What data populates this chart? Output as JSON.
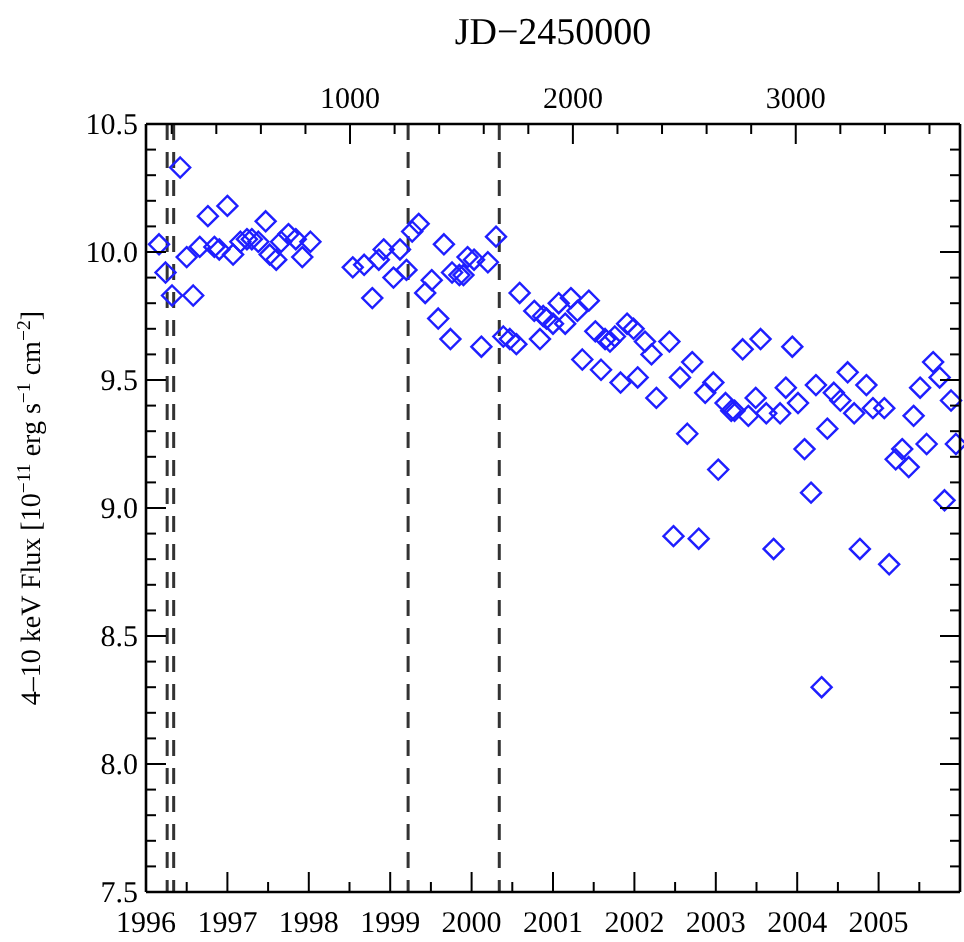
{
  "chart_data": {
    "type": "scatter",
    "x2label": "JD−2450000",
    "ylabel": "4–10 keV Flux [10$^{−11}$ erg s$^{−1}$ cm$^{−2}$]",
    "marker": "diamond",
    "xlim": [
      1996,
      2006
    ],
    "xticks": [
      1996,
      {
        "value": 1996.5,
        "label": null
      },
      1997,
      {
        "value": 1997.5,
        "label": null
      },
      1998,
      {
        "value": 1998.5,
        "label": null
      },
      1999,
      {
        "value": 1999.5,
        "label": null
      },
      2000,
      {
        "value": 2000.5,
        "label": null
      },
      2001,
      {
        "value": 2001.5,
        "label": null
      },
      2002,
      {
        "value": 2002.5,
        "label": null
      },
      2003,
      {
        "value": 2003.5,
        "label": null
      },
      2004,
      {
        "value": 2004.5,
        "label": null
      },
      2005,
      {
        "value": 2005.5,
        "label": null
      }
    ],
    "x2lim": [
      84.5,
      3737
    ],
    "x2ticks": [
      {
        "value": 200,
        "label": null
      },
      {
        "value": 400,
        "label": null
      },
      {
        "value": 600,
        "label": null
      },
      {
        "value": 800,
        "label": null
      },
      1000,
      {
        "value": 1200,
        "label": null
      },
      {
        "value": 1400,
        "label": null
      },
      {
        "value": 1600,
        "label": null
      },
      {
        "value": 1800,
        "label": null
      },
      2000,
      {
        "value": 2200,
        "label": null
      },
      {
        "value": 2400,
        "label": null
      },
      {
        "value": 2600,
        "label": null
      },
      {
        "value": 2800,
        "label": null
      },
      3000,
      {
        "value": 3200,
        "label": null
      },
      {
        "value": 3400,
        "label": null
      },
      {
        "value": 3600,
        "label": null
      }
    ],
    "ylim": [
      7.5,
      10.5
    ],
    "yticks": [
      7.5,
      {
        "value": 7.6,
        "label": null
      },
      {
        "value": 7.7,
        "label": null
      },
      {
        "value": 7.8,
        "label": null
      },
      {
        "value": 7.9,
        "label": null
      },
      {
        "value": 8,
        "label": "8.0"
      },
      {
        "value": 8.1,
        "label": null
      },
      {
        "value": 8.2,
        "label": null
      },
      {
        "value": 8.3,
        "label": null
      },
      {
        "value": 8.4,
        "label": null
      },
      8.5,
      {
        "value": 8.6,
        "label": null
      },
      {
        "value": 8.7,
        "label": null
      },
      {
        "value": 8.8,
        "label": null
      },
      {
        "value": 8.9,
        "label": null
      },
      {
        "value": 9,
        "label": "9.0"
      },
      {
        "value": 9.1,
        "label": null
      },
      {
        "value": 9.2,
        "label": null
      },
      {
        "value": 9.3,
        "label": null
      },
      {
        "value": 9.4,
        "label": null
      },
      9.5,
      {
        "value": 9.6,
        "label": null
      },
      {
        "value": 9.7,
        "label": null
      },
      {
        "value": 9.8,
        "label": null
      },
      {
        "value": 9.9,
        "label": null
      },
      {
        "value": 10,
        "label": "10.0"
      },
      {
        "value": 10.1,
        "label": null
      },
      {
        "value": 10.2,
        "label": null
      },
      {
        "value": 10.3,
        "label": null
      },
      {
        "value": 10.4,
        "label": null
      },
      10.5
    ],
    "ref_lines": [
      {
        "axis": "x",
        "value": 1996.26,
        "label": null,
        "color": "#333333",
        "line_style": "dashed"
      },
      {
        "axis": "x",
        "value": 1996.34,
        "label": null,
        "color": "#333333",
        "line_style": "dashed"
      },
      {
        "axis": "x",
        "value": 1999.22,
        "label": null,
        "color": "#333333",
        "line_style": "dashed"
      },
      {
        "axis": "x",
        "value": 2000.34,
        "label": null,
        "color": "#333333",
        "line_style": "dashed"
      }
    ],
    "series": [
      {
        "color": "#1f1fff",
        "x": [
          1996.16,
          1996.24,
          1996.42,
          1996.32,
          1996.5,
          1996.58,
          1996.66,
          1996.76,
          1996.84,
          1996.9,
          1997.0,
          1997.07,
          1997.16,
          1997.24,
          1997.3,
          1997.38,
          1997.47,
          1997.52,
          1997.6,
          1997.66,
          1997.75,
          1997.84,
          1997.92,
          1998.02,
          1998.54,
          1998.68,
          1998.78,
          1998.86,
          1998.92,
          1999.04,
          1999.12,
          1999.2,
          1999.27,
          1999.35,
          1999.43,
          1999.51,
          1999.59,
          1999.66,
          1999.74,
          1999.76,
          1999.85,
          1999.9,
          1999.95,
          2000.03,
          2000.12,
          2000.2,
          2000.3,
          2000.39,
          2000.47,
          2000.55,
          2000.59,
          2000.77,
          2000.84,
          2000.88,
          2000.92,
          2001.0,
          2001.07,
          2001.15,
          2001.22,
          2001.3,
          2001.36,
          2001.44,
          2001.52,
          2001.59,
          2001.64,
          2001.7,
          2001.76,
          2001.83,
          2001.91,
          2001.99,
          2002.04,
          2002.13,
          2002.21,
          2002.27,
          2002.43,
          2002.48,
          2002.56,
          2002.65,
          2002.71,
          2002.79,
          2002.87,
          2002.97,
          2003.03,
          2003.12,
          2003.19,
          2003.23,
          2003.33,
          2003.4,
          2003.49,
          2003.55,
          2003.62,
          2003.71,
          2003.79,
          2003.86,
          2003.94,
          2004.01,
          2004.09,
          2004.17,
          2004.23,
          2004.3,
          2004.37,
          2004.45,
          2004.53,
          2004.62,
          2004.7,
          2004.77,
          2004.85,
          2004.93,
          2005.07,
          2005.13,
          2005.21,
          2005.29,
          2005.37,
          2005.43,
          2005.51,
          2005.59,
          2005.67,
          2005.75,
          2005.81,
          2005.89,
          2005.95
        ],
        "values": [
          10.03,
          9.92,
          10.33,
          9.83,
          9.98,
          9.83,
          10.02,
          10.14,
          10.02,
          10.01,
          10.18,
          9.99,
          10.04,
          10.05,
          10.05,
          10.04,
          10.12,
          9.99,
          9.97,
          10.04,
          10.07,
          10.05,
          9.98,
          10.04,
          9.94,
          9.95,
          9.82,
          9.97,
          10.01,
          9.9,
          10.01,
          9.93,
          10.08,
          10.11,
          9.84,
          9.89,
          9.74,
          10.03,
          9.66,
          9.92,
          9.91,
          9.91,
          9.98,
          9.97,
          9.63,
          9.96,
          10.06,
          9.67,
          9.66,
          9.64,
          9.84,
          9.77,
          9.66,
          9.75,
          9.74,
          9.72,
          9.8,
          9.72,
          9.82,
          9.77,
          9.58,
          9.81,
          9.69,
          9.54,
          9.66,
          9.65,
          9.67,
          9.49,
          9.72,
          9.7,
          9.51,
          9.65,
          9.6,
          9.43,
          9.65,
          8.89,
          9.51,
          9.29,
          9.57,
          8.88,
          9.45,
          9.49,
          9.15,
          9.41,
          9.38,
          9.38,
          9.62,
          9.36,
          9.43,
          9.66,
          9.37,
          8.84,
          9.37,
          9.47,
          9.63,
          9.41,
          9.23,
          9.06,
          9.48,
          8.3,
          9.31,
          9.45,
          9.42,
          9.53,
          9.37,
          8.84,
          9.48,
          9.39,
          9.39,
          8.78,
          9.19,
          9.23,
          9.16,
          9.36,
          9.47,
          9.25,
          9.57,
          9.51,
          9.03,
          9.42,
          9.25
        ]
      }
    ]
  }
}
